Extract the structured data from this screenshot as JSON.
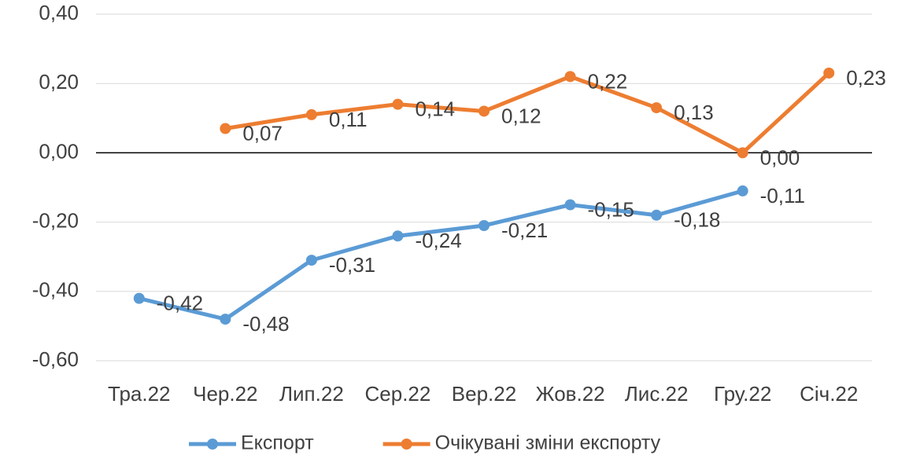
{
  "chart_data": {
    "type": "line",
    "categories": [
      "Тра.22",
      "Чер.22",
      "Лип.22",
      "Сер.22",
      "Вер.22",
      "Жов.22",
      "Лис.22",
      "Гру.22",
      "Січ.22"
    ],
    "series": [
      {
        "name": "Експорт",
        "color": "#5b9bd5",
        "values": [
          -0.42,
          -0.48,
          -0.31,
          -0.24,
          -0.21,
          -0.15,
          -0.18,
          -0.11,
          null
        ],
        "value_labels": [
          "-0,42",
          "-0,48",
          "-0,31",
          "-0,24",
          "-0,21",
          "-0,15",
          "-0,18",
          "-0,11",
          null
        ]
      },
      {
        "name": "Очікувані зміни експорту",
        "color": "#ed7d31",
        "values": [
          null,
          0.07,
          0.11,
          0.14,
          0.12,
          0.22,
          0.13,
          0.0,
          0.23
        ],
        "value_labels": [
          null,
          "0,07",
          "0,11",
          "0,14",
          "0,12",
          "0,22",
          "0,13",
          "0,00",
          "0,23"
        ]
      }
    ],
    "ylim": [
      -0.6,
      0.4
    ],
    "yticks": [
      {
        "value": -0.6,
        "label": "-0,60"
      },
      {
        "value": -0.4,
        "label": "-0,40"
      },
      {
        "value": -0.2,
        "label": "-0,20"
      },
      {
        "value": 0,
        "label": "0,00"
      },
      {
        "value": 0.2,
        "label": "0,20"
      },
      {
        "value": 0.4,
        "label": "0,40"
      }
    ],
    "grid": true,
    "legend": "bottom"
  }
}
